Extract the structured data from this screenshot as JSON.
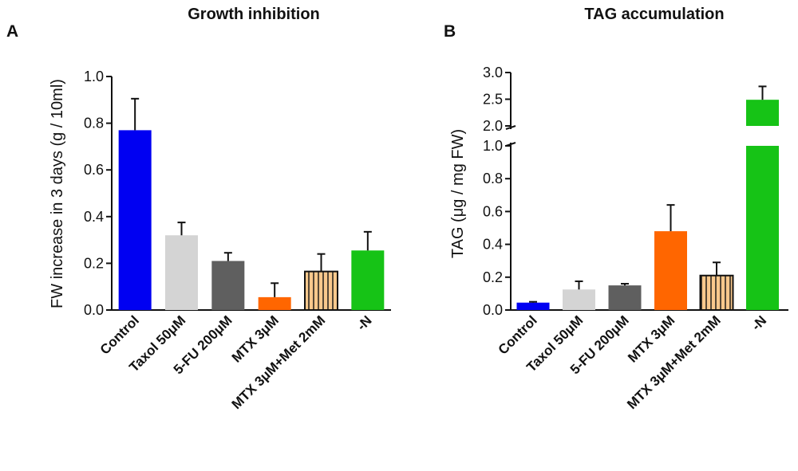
{
  "chart_data": [
    {
      "panel": "A",
      "type": "bar",
      "title": "Growth inhibition",
      "ylabel": "FW increase in 3 days (g / 10ml)",
      "xlabel": "",
      "ylim": [
        0,
        1.0
      ],
      "yticks": [
        "0.0",
        "0.2",
        "0.4",
        "0.6",
        "0.8",
        "1.0"
      ],
      "categories": [
        "Control",
        "Taxol 50μM",
        "5-FU 200μM",
        "MTX 3μM",
        "MTX 3μM+Met 2mM",
        "-N"
      ],
      "values": [
        0.77,
        0.32,
        0.21,
        0.055,
        0.165,
        0.255
      ],
      "errors": [
        0.135,
        0.055,
        0.035,
        0.06,
        0.075,
        0.08
      ],
      "colors": [
        "#0000f2",
        "#d4d4d4",
        "#5f5f5f",
        "#ff6600",
        "#f9c88c",
        "#16c316"
      ],
      "hatched": [
        false,
        false,
        false,
        false,
        true,
        false
      ]
    },
    {
      "panel": "B",
      "type": "bar",
      "title": "TAG accumulation",
      "ylabel": "TAG (μg / mg FW)",
      "xlabel": "",
      "ylim": [
        0,
        3.0
      ],
      "axis_break": [
        1.0,
        2.0
      ],
      "yticks_lower": [
        "0.0",
        "0.2",
        "0.4",
        "0.6",
        "0.8",
        "1.0"
      ],
      "yticks_upper": [
        "2.0",
        "2.5",
        "3.0"
      ],
      "categories": [
        "Control",
        "Taxol 50μM",
        "5-FU 200μM",
        "MTX 3μM",
        "MTX 3μM+Met 2mM",
        "-N"
      ],
      "values": [
        0.045,
        0.125,
        0.15,
        0.48,
        0.21,
        2.49
      ],
      "errors": [
        0.005,
        0.05,
        0.01,
        0.16,
        0.08,
        0.25
      ],
      "colors": [
        "#0000f2",
        "#d4d4d4",
        "#5f5f5f",
        "#ff6600",
        "#f9c88c",
        "#16c316"
      ],
      "hatched": [
        false,
        false,
        false,
        false,
        true,
        false
      ]
    }
  ]
}
